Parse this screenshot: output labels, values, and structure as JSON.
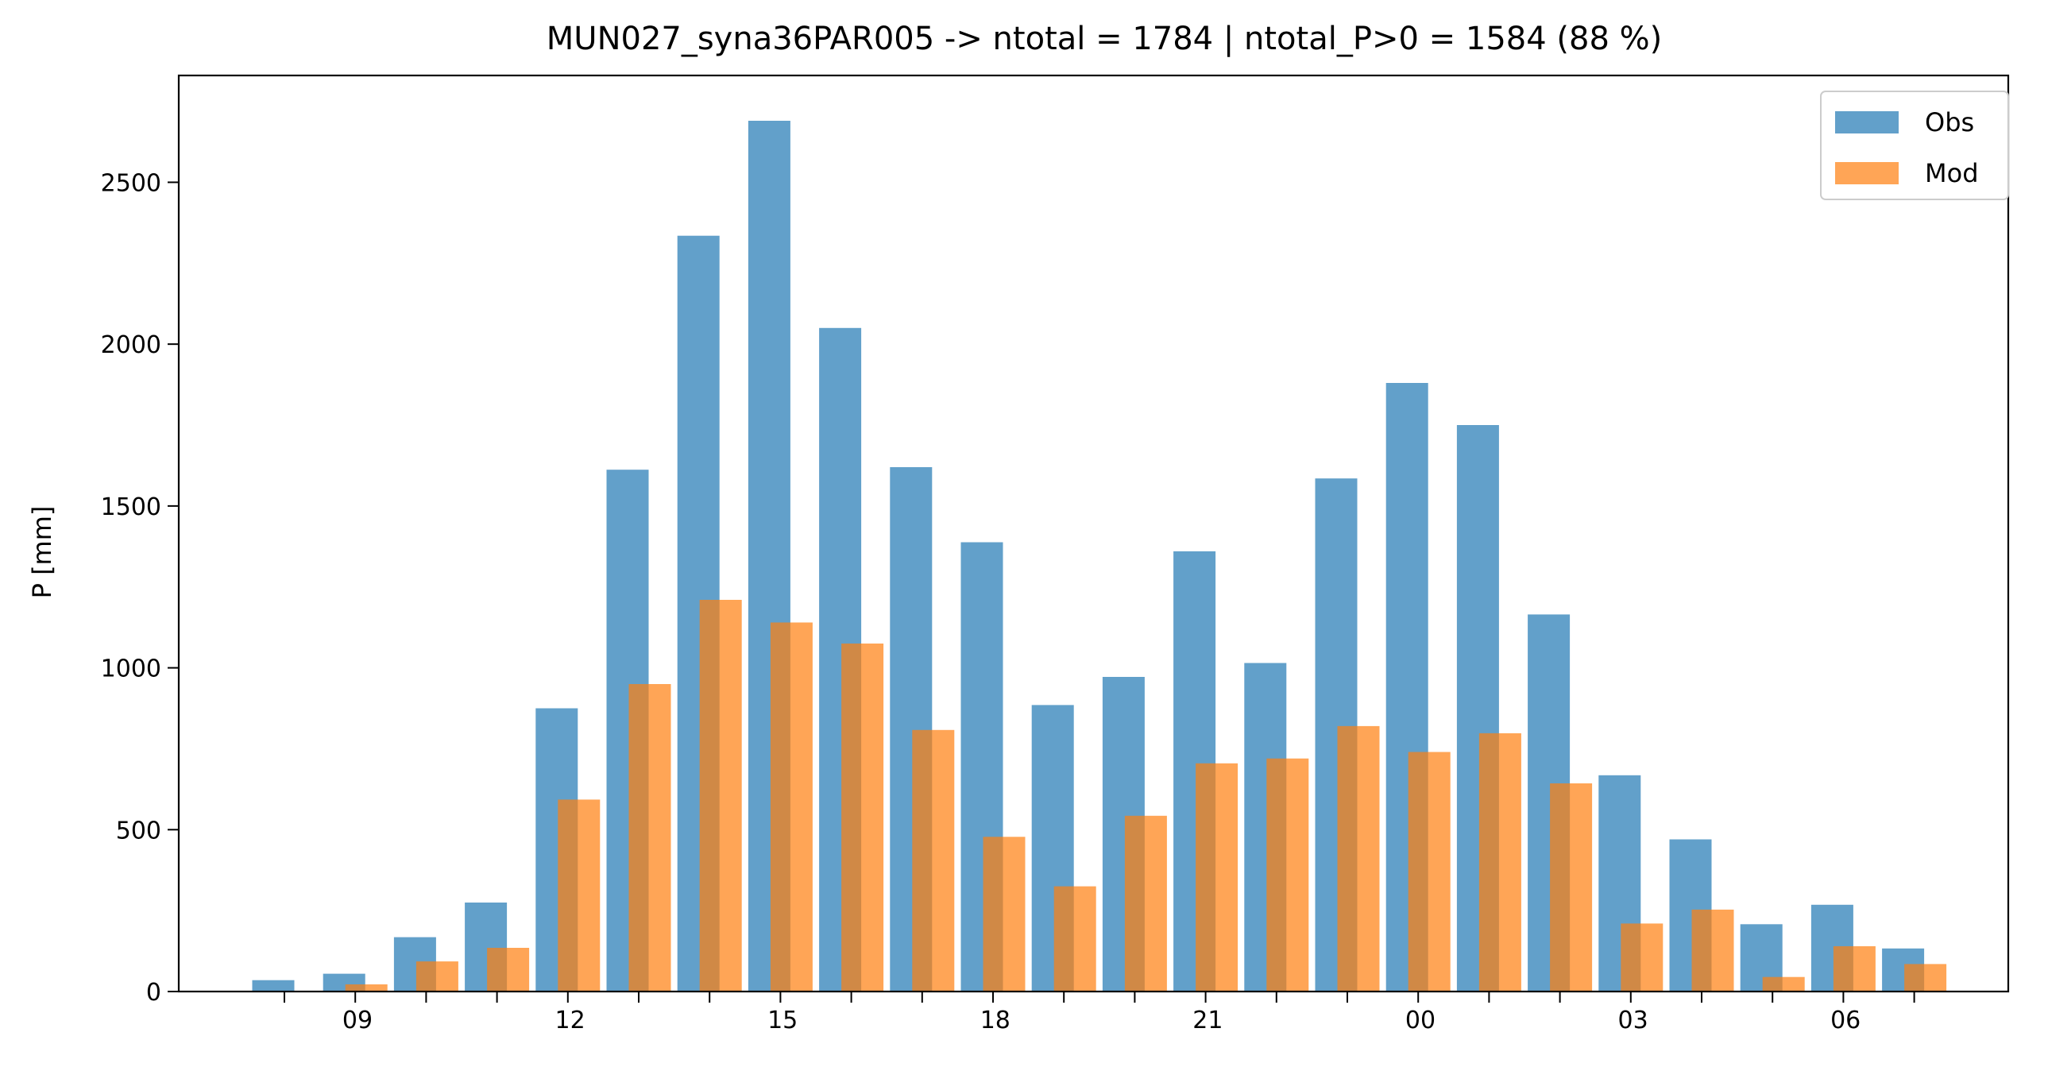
{
  "chart_data": {
    "type": "bar",
    "title": "MUN027_syna36PAR005 -> ntotal = 1784 | ntotal_P>0 = 1584 (88 %)",
    "xlabel": "",
    "ylabel": "P [mm]",
    "ylim": [
      0,
      2830
    ],
    "yticks": [
      0,
      500,
      1000,
      1500,
      2000,
      2500
    ],
    "hours": [
      8,
      9,
      10,
      11,
      12,
      13,
      14,
      15,
      16,
      17,
      18,
      19,
      20,
      21,
      22,
      23,
      0,
      1,
      2,
      3,
      4,
      5,
      6,
      7
    ],
    "xtick_labels": [
      "09",
      "12",
      "15",
      "18",
      "21",
      "00",
      "03",
      "06"
    ],
    "series": [
      {
        "name": "Obs",
        "color": "#1f77b4",
        "values": [
          35,
          55,
          168,
          275,
          875,
          1612,
          2335,
          2690,
          2050,
          1620,
          1388,
          885,
          972,
          1360,
          1015,
          1585,
          1880,
          1750,
          1165,
          668,
          470,
          208,
          268,
          133
        ]
      },
      {
        "name": "Mod",
        "color": "#ff7f0e",
        "values": [
          0,
          22,
          93,
          135,
          593,
          950,
          1210,
          1140,
          1075,
          808,
          478,
          325,
          543,
          705,
          720,
          820,
          740,
          798,
          643,
          210,
          253,
          45,
          140,
          85
        ]
      }
    ],
    "legend": {
      "position": "top-right"
    },
    "grid": false
  }
}
